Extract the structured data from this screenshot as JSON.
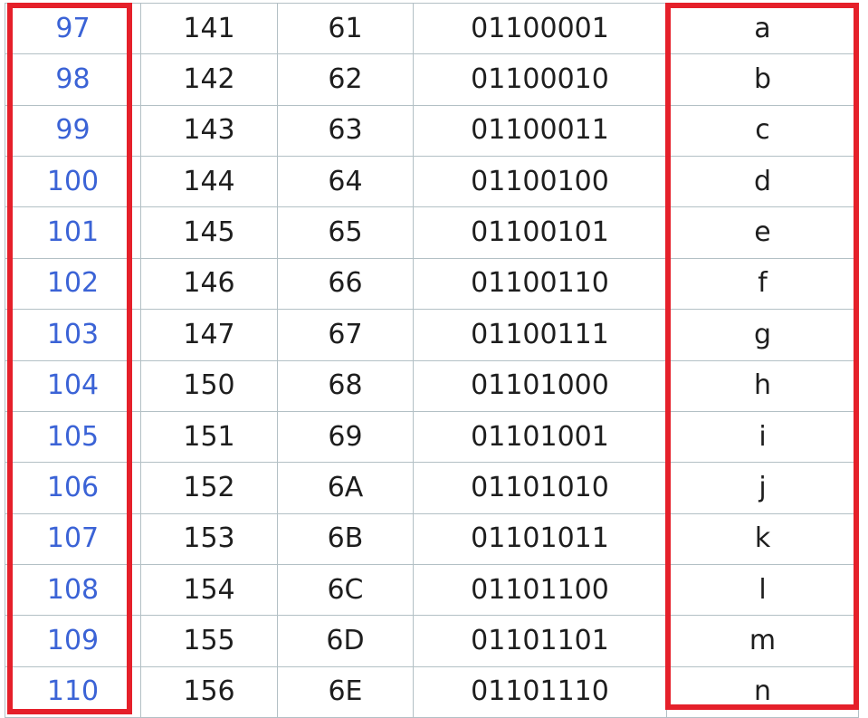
{
  "table": {
    "rows": [
      {
        "decimal": "97",
        "octal": "141",
        "hex": "61",
        "binary": "01100001",
        "char": "a"
      },
      {
        "decimal": "98",
        "octal": "142",
        "hex": "62",
        "binary": "01100010",
        "char": "b"
      },
      {
        "decimal": "99",
        "octal": "143",
        "hex": "63",
        "binary": "01100011",
        "char": "c"
      },
      {
        "decimal": "100",
        "octal": "144",
        "hex": "64",
        "binary": "01100100",
        "char": "d"
      },
      {
        "decimal": "101",
        "octal": "145",
        "hex": "65",
        "binary": "01100101",
        "char": "e"
      },
      {
        "decimal": "102",
        "octal": "146",
        "hex": "66",
        "binary": "01100110",
        "char": "f"
      },
      {
        "decimal": "103",
        "octal": "147",
        "hex": "67",
        "binary": "01100111",
        "char": "g"
      },
      {
        "decimal": "104",
        "octal": "150",
        "hex": "68",
        "binary": "01101000",
        "char": "h"
      },
      {
        "decimal": "105",
        "octal": "151",
        "hex": "69",
        "binary": "01101001",
        "char": "i"
      },
      {
        "decimal": "106",
        "octal": "152",
        "hex": "6A",
        "binary": "01101010",
        "char": "j"
      },
      {
        "decimal": "107",
        "octal": "153",
        "hex": "6B",
        "binary": "01101011",
        "char": "k"
      },
      {
        "decimal": "108",
        "octal": "154",
        "hex": "6C",
        "binary": "01101100",
        "char": "l"
      },
      {
        "decimal": "109",
        "octal": "155",
        "hex": "6D",
        "binary": "01101101",
        "char": "m"
      },
      {
        "decimal": "110",
        "octal": "156",
        "hex": "6E",
        "binary": "01101110",
        "char": "n"
      }
    ]
  },
  "colors": {
    "link": "#3b63d6",
    "text": "#1e1e1e",
    "grid": "#b3c0c5",
    "highlight": "#e5202a"
  }
}
